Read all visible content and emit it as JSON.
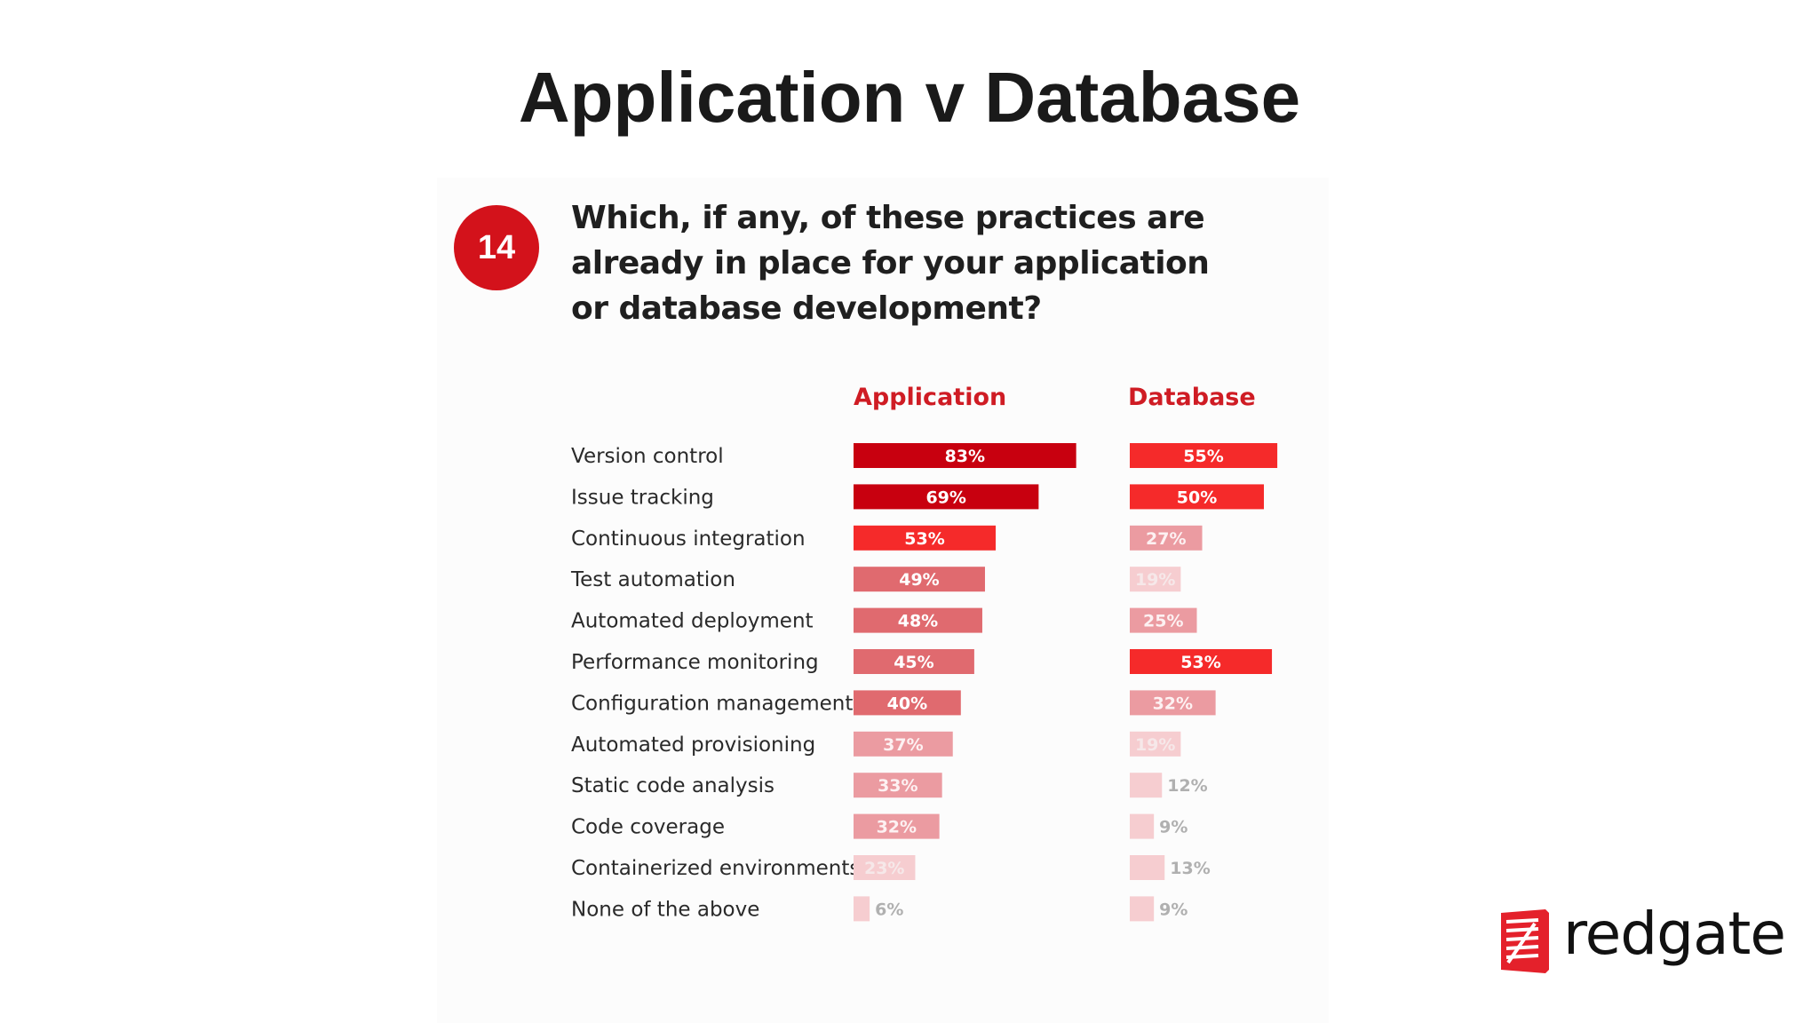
{
  "slide": {
    "title": "Application v Database"
  },
  "question": {
    "number": "14",
    "text": "Which, if any, of these practices are already in place for your application or database development?"
  },
  "brand": {
    "name": "redgate",
    "color": "#e4212b"
  },
  "chart_data": {
    "type": "bar",
    "orientation": "horizontal",
    "categories": [
      "Version control",
      "Issue tracking",
      "Continuous integration",
      "Test automation",
      "Automated deployment",
      "Performance monitoring",
      "Configuration management",
      "Automated provisioning",
      "Static code analysis",
      "Code coverage",
      "Containerized environments",
      "None of the above"
    ],
    "series": [
      {
        "name": "Application",
        "values": [
          83,
          69,
          53,
          49,
          48,
          45,
          40,
          37,
          33,
          32,
          23,
          6
        ],
        "labels": [
          "83%",
          "69%",
          "53%",
          "49%",
          "48%",
          "45%",
          "40%",
          "37%",
          "33%",
          "32%",
          "23%",
          "6%"
        ]
      },
      {
        "name": "Database",
        "values": [
          55,
          50,
          27,
          19,
          25,
          53,
          32,
          19,
          12,
          9,
          13,
          9
        ],
        "labels": [
          "55%",
          "50%",
          "27%",
          "19%",
          "25%",
          "53%",
          "32%",
          "19%",
          "12%",
          "9%",
          "13%",
          "9%"
        ]
      }
    ],
    "unit": "%",
    "colors": {
      "darkest": "#c8000f",
      "dark": "#f52a2a",
      "medium": "#e06a6f",
      "light": "#eb9ba1",
      "lighter": "#f6cdd0",
      "label_light": "#f6e8e9",
      "label_outside": "#b0b0b0"
    }
  }
}
